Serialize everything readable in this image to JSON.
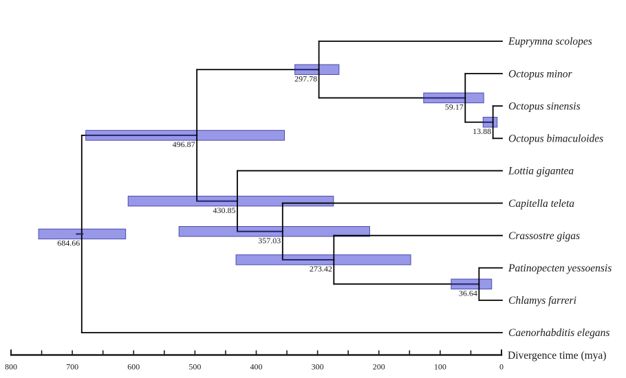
{
  "figure": {
    "kind": "phylogenetic-chronogram",
    "background": "#ffffff",
    "colors": {
      "branch": "#000000",
      "branch_inside_bar": "#23236b",
      "bar_fill": "#9898e8",
      "bar_border": "#4a4aae",
      "text": "#1a1a1a",
      "axis": "#1a1a1a"
    }
  },
  "chart_data": {
    "type": "tree",
    "title": "",
    "time_axis": {
      "label": "Divergence time (mya)",
      "min": 0,
      "max": 800,
      "major_ticks": [
        800,
        700,
        600,
        500,
        400,
        300,
        200,
        100,
        0
      ],
      "minor_tick_step": 50,
      "orientation": "time decreases left to right, 0 at right"
    },
    "taxa": [
      "Euprymna scolopes",
      "Octopus minor",
      "Octopus sinensis",
      "Octopus bimaculoides",
      "Lottia gigantea",
      "Capitella teleta",
      "Crassostre gigas",
      "Patinopecten yessoensis",
      "Chlamys farreri",
      "Caenorhabditis elegans"
    ],
    "internal_nodes": [
      {
        "label": "684.66",
        "age": 684.66,
        "hpd": [
          613,
          755
        ]
      },
      {
        "label": "496.87",
        "age": 496.87,
        "hpd": [
          354,
          678
        ]
      },
      {
        "label": "297.78",
        "age": 297.78,
        "hpd": [
          265,
          337
        ]
      },
      {
        "label": "59.17",
        "age": 59.17,
        "hpd": [
          29,
          127
        ]
      },
      {
        "label": "13.88",
        "age": 13.88,
        "hpd": [
          7,
          30
        ]
      },
      {
        "label": "430.85",
        "age": 430.85,
        "hpd": [
          274,
          609
        ]
      },
      {
        "label": "357.03",
        "age": 357.03,
        "hpd": [
          215,
          526
        ]
      },
      {
        "label": "273.42",
        "age": 273.42,
        "hpd": [
          148,
          433
        ]
      },
      {
        "label": "36.64",
        "age": 36.64,
        "hpd": [
          16,
          82
        ]
      }
    ],
    "tree": {
      "label": "684.66",
      "age": 684.66,
      "hpd": [
        613,
        755
      ],
      "children": [
        {
          "label": "496.87",
          "age": 496.87,
          "hpd": [
            354,
            678
          ],
          "children": [
            {
              "label": "297.78",
              "age": 297.78,
              "hpd": [
                265,
                337
              ],
              "children": [
                {
                  "name": "Euprymna scolopes"
                },
                {
                  "label": "59.17",
                  "age": 59.17,
                  "hpd": [
                    29,
                    127
                  ],
                  "children": [
                    {
                      "name": "Octopus minor"
                    },
                    {
                      "label": "13.88",
                      "age": 13.88,
                      "hpd": [
                        7,
                        30
                      ],
                      "children": [
                        {
                          "name": "Octopus sinensis"
                        },
                        {
                          "name": "Octopus bimaculoides"
                        }
                      ]
                    }
                  ]
                }
              ]
            },
            {
              "label": "430.85",
              "age": 430.85,
              "hpd": [
                274,
                609
              ],
              "children": [
                {
                  "name": "Lottia gigantea"
                },
                {
                  "label": "357.03",
                  "age": 357.03,
                  "hpd": [
                    215,
                    526
                  ],
                  "children": [
                    {
                      "name": "Capitella teleta"
                    },
                    {
                      "label": "273.42",
                      "age": 273.42,
                      "hpd": [
                        148,
                        433
                      ],
                      "children": [
                        {
                          "name": "Crassostre gigas"
                        },
                        {
                          "label": "36.64",
                          "age": 36.64,
                          "hpd": [
                            16,
                            82
                          ],
                          "children": [
                            {
                              "name": "Patinopecten yessoensis"
                            },
                            {
                              "name": "Chlamys farreri"
                            }
                          ]
                        }
                      ]
                    }
                  ]
                }
              ]
            }
          ]
        },
        {
          "name": "Caenorhabditis elegans"
        }
      ]
    }
  }
}
